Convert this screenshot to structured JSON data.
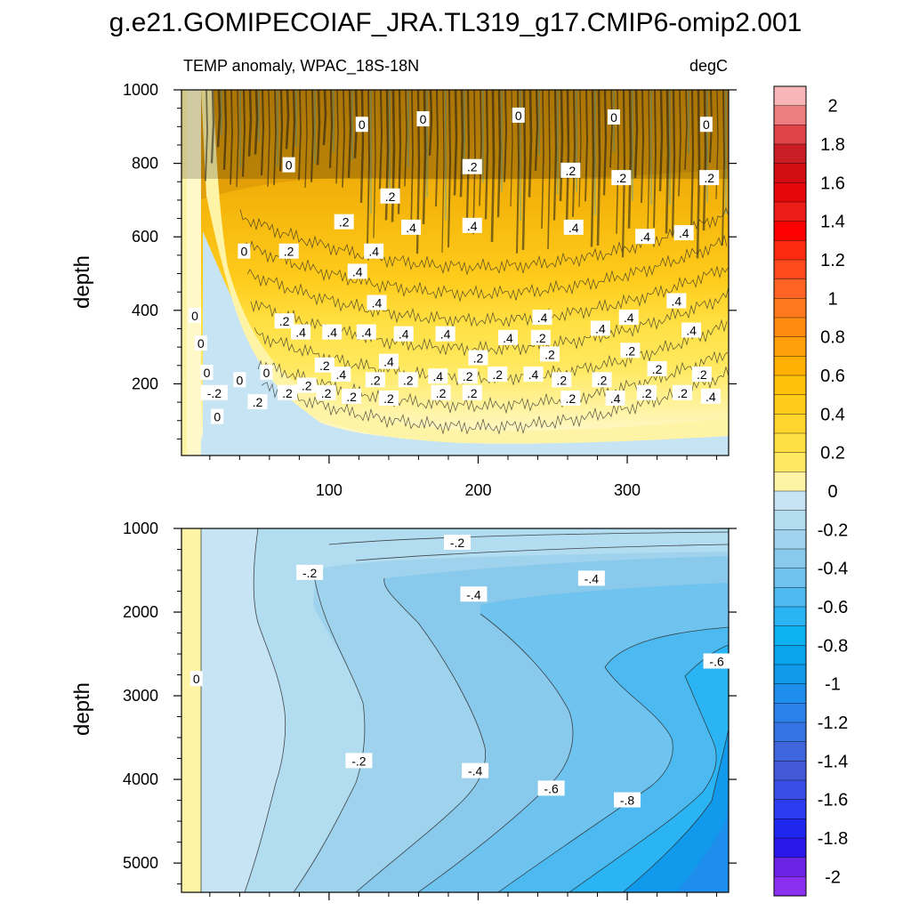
{
  "title": "g.e21.GOMIPECOIAF_JRA.TL319_g17.CMIP6-omip2.001",
  "chart_data": [
    {
      "type": "heatmap",
      "panel": "upper",
      "subtitle_left": "TEMP anomaly, WPAC_18S-18N",
      "subtitle_right": "degC",
      "xlabel": "",
      "ylabel": "depth",
      "xlim": [
        1,
        368
      ],
      "ylim": [
        1000,
        5
      ],
      "y_reversed": true,
      "x_ticks": [
        100,
        200,
        300
      ],
      "y_ticks": [
        200,
        400,
        600,
        800,
        1000
      ],
      "description_of_field": "warm anomaly 0 to 0.6 degC with maximum near 300-600 m; zero contour near 950 m; slightly negative near surface at left",
      "contour_labels": [
        {
          "x": 25,
          "y": 110,
          "text": "0"
        },
        {
          "x": 23,
          "y": 175,
          "text": "-.2"
        },
        {
          "x": 52,
          "y": 150,
          "text": ".2"
        },
        {
          "x": 40,
          "y": 210,
          "text": "0"
        },
        {
          "x": 18,
          "y": 230,
          "text": "0"
        },
        {
          "x": 58,
          "y": 230,
          "text": "0"
        },
        {
          "x": 14,
          "y": 310,
          "text": "0"
        },
        {
          "x": 10,
          "y": 385,
          "text": "0"
        },
        {
          "x": 72,
          "y": 175,
          "text": ".2"
        },
        {
          "x": 98,
          "y": 175,
          "text": ".2"
        },
        {
          "x": 115,
          "y": 165,
          "text": ".2"
        },
        {
          "x": 140,
          "y": 160,
          "text": ".2"
        },
        {
          "x": 175,
          "y": 175,
          "text": ".2"
        },
        {
          "x": 196,
          "y": 175,
          "text": ".2"
        },
        {
          "x": 262,
          "y": 160,
          "text": ".2"
        },
        {
          "x": 292,
          "y": 160,
          "text": ".4"
        },
        {
          "x": 313,
          "y": 175,
          "text": ".2"
        },
        {
          "x": 337,
          "y": 175,
          "text": ".2"
        },
        {
          "x": 356,
          "y": 165,
          "text": ".4"
        },
        {
          "x": 85,
          "y": 195,
          "text": ".2"
        },
        {
          "x": 108,
          "y": 225,
          "text": ".4"
        },
        {
          "x": 131,
          "y": 210,
          "text": ".2"
        },
        {
          "x": 153,
          "y": 210,
          "text": ".2"
        },
        {
          "x": 173,
          "y": 220,
          "text": ".4"
        },
        {
          "x": 193,
          "y": 220,
          "text": ".2"
        },
        {
          "x": 213,
          "y": 225,
          "text": ".2"
        },
        {
          "x": 237,
          "y": 225,
          "text": ".4"
        },
        {
          "x": 256,
          "y": 210,
          "text": ".2"
        },
        {
          "x": 283,
          "y": 210,
          "text": ".2"
        },
        {
          "x": 320,
          "y": 240,
          "text": ".2"
        },
        {
          "x": 350,
          "y": 225,
          "text": ".2"
        },
        {
          "x": 97,
          "y": 250,
          "text": ".2"
        },
        {
          "x": 140,
          "y": 260,
          "text": ".4"
        },
        {
          "x": 200,
          "y": 270,
          "text": ".2"
        },
        {
          "x": 248,
          "y": 280,
          "text": ".2"
        },
        {
          "x": 302,
          "y": 290,
          "text": ".2"
        },
        {
          "x": 81,
          "y": 340,
          "text": ".4"
        },
        {
          "x": 102,
          "y": 340,
          "text": ".4"
        },
        {
          "x": 125,
          "y": 340,
          "text": ".4"
        },
        {
          "x": 150,
          "y": 335,
          "text": ".4"
        },
        {
          "x": 178,
          "y": 335,
          "text": ".4"
        },
        {
          "x": 220,
          "y": 325,
          "text": ".4"
        },
        {
          "x": 242,
          "y": 325,
          "text": ".2"
        },
        {
          "x": 282,
          "y": 350,
          "text": ".4"
        },
        {
          "x": 343,
          "y": 345,
          "text": ".4"
        },
        {
          "x": 70,
          "y": 370,
          "text": ".2"
        },
        {
          "x": 243,
          "y": 380,
          "text": ".4"
        },
        {
          "x": 301,
          "y": 380,
          "text": ".4"
        },
        {
          "x": 132,
          "y": 420,
          "text": ".4"
        },
        {
          "x": 333,
          "y": 425,
          "text": ".4"
        },
        {
          "x": 119,
          "y": 505,
          "text": ".4"
        },
        {
          "x": 43,
          "y": 560,
          "text": "0"
        },
        {
          "x": 73,
          "y": 560,
          "text": ".2"
        },
        {
          "x": 130,
          "y": 560,
          "text": ".4"
        },
        {
          "x": 110,
          "y": 640,
          "text": ".2"
        },
        {
          "x": 155,
          "y": 625,
          "text": ".4"
        },
        {
          "x": 196,
          "y": 630,
          "text": ".4"
        },
        {
          "x": 264,
          "y": 625,
          "text": ".4"
        },
        {
          "x": 312,
          "y": 600,
          "text": ".4"
        },
        {
          "x": 338,
          "y": 610,
          "text": ".4"
        },
        {
          "x": 141,
          "y": 710,
          "text": ".2"
        },
        {
          "x": 196,
          "y": 790,
          "text": ".2"
        },
        {
          "x": 262,
          "y": 780,
          "text": ".2"
        },
        {
          "x": 296,
          "y": 760,
          "text": ".2"
        },
        {
          "x": 355,
          "y": 760,
          "text": ".2"
        },
        {
          "x": 73,
          "y": 795,
          "text": "0"
        },
        {
          "x": 122,
          "y": 905,
          "text": "0"
        },
        {
          "x": 163,
          "y": 920,
          "text": "0"
        },
        {
          "x": 227,
          "y": 930,
          "text": "0"
        },
        {
          "x": 291,
          "y": 925,
          "text": "0"
        },
        {
          "x": 353,
          "y": 905,
          "text": "0"
        }
      ]
    },
    {
      "type": "heatmap",
      "panel": "lower",
      "xlabel": "",
      "ylabel": "depth",
      "xlim": [
        1,
        368
      ],
      "ylim": [
        1000,
        5350
      ],
      "y_reversed": true,
      "x_ticks": [
        100,
        200,
        300
      ],
      "y_ticks": [
        1000,
        2000,
        3000,
        4000,
        5000
      ],
      "description_of_field": "cooling that deepens and strengthens over time, reaching about -0.8 to -1 degC near the bottom at late times",
      "contour_labels": [
        {
          "x": 11,
          "y": 2800,
          "text": "0"
        },
        {
          "x": 186,
          "y": 1170,
          "text": "-.2"
        },
        {
          "x": 87,
          "y": 1530,
          "text": "-.2"
        },
        {
          "x": 197,
          "y": 1790,
          "text": "-.4"
        },
        {
          "x": 276,
          "y": 1600,
          "text": "-.4"
        },
        {
          "x": 360,
          "y": 2590,
          "text": "-.6"
        },
        {
          "x": 120,
          "y": 3780,
          "text": "-.2"
        },
        {
          "x": 198,
          "y": 3900,
          "text": "-.4"
        },
        {
          "x": 249,
          "y": 4110,
          "text": "-.6"
        },
        {
          "x": 300,
          "y": 4250,
          "text": "-.8"
        }
      ]
    }
  ],
  "colorbar": {
    "labels": [
      "2",
      "1.8",
      "1.6",
      "1.4",
      "1.2",
      "1",
      "0.8",
      "0.6",
      "0.4",
      "0.2",
      "0",
      "-0.2",
      "-0.4",
      "-0.6",
      "-0.8",
      "-1",
      "-1.2",
      "-1.4",
      "-1.6",
      "-1.8",
      "-2"
    ],
    "colors_top_to_bottom": [
      "#f7b6b8",
      "#ee7d7f",
      "#e04447",
      "#c91e25",
      "#d30e12",
      "#e5080b",
      "#ec1c16",
      "#ff0000",
      "#ff2a12",
      "#ff4a1e",
      "#ff6424",
      "#ff7a1c",
      "#ff8c10",
      "#ffa00a",
      "#ffb000",
      "#ffc20a",
      "#ffcc1c",
      "#ffd52e",
      "#ffe044",
      "#ffe960",
      "#fff4a6",
      "#c7e4f4",
      "#b2dcf0",
      "#9fd3ed",
      "#89c9eb",
      "#6fc3ef",
      "#4cbaf0",
      "#2bb4f3",
      "#0cb1ef",
      "#09a4ec",
      "#119aec",
      "#1d8eec",
      "#2a82ea",
      "#3674e4",
      "#3f66dd",
      "#4459d8",
      "#3a4de4",
      "#2b3cee",
      "#1f26ee",
      "#2a18ea",
      "#6c22e4",
      "#8b2ff0"
    ]
  }
}
